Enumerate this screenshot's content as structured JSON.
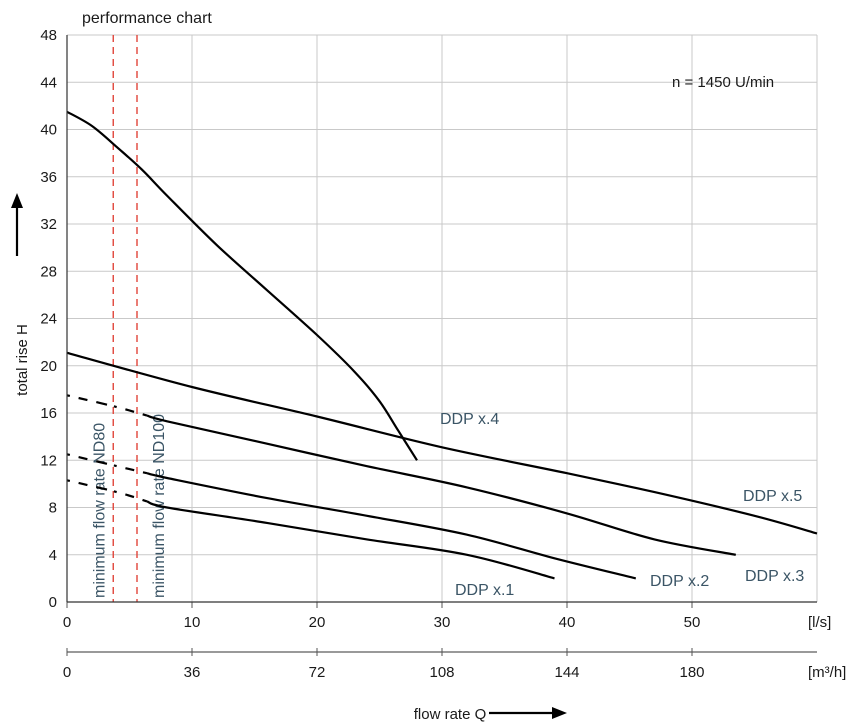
{
  "chart_data": {
    "type": "line",
    "title": "performance chart",
    "ylabel": "total rise H",
    "xlabel": "flow rate  Q",
    "speed_note": "n = 1450   U/min",
    "ylim": [
      0,
      48
    ],
    "xlim": [
      0,
      60
    ],
    "y_ticks": [
      0,
      4,
      8,
      12,
      16,
      20,
      24,
      28,
      32,
      36,
      40,
      44,
      48
    ],
    "x_ticks": [
      0,
      10,
      20,
      30,
      40,
      50
    ],
    "x_unit": "[l/s]",
    "x2_ticks": [
      0,
      36,
      72,
      108,
      144,
      180
    ],
    "x2_unit": "[m³/h]",
    "grid": true,
    "reference_lines": [
      {
        "label": "minimum flow rate ND80",
        "x": 3.7,
        "color": "#e0453a"
      },
      {
        "label": "minimum flow rate ND100",
        "x": 5.6,
        "color": "#e0453a"
      }
    ],
    "series": [
      {
        "name": "DDP x.1",
        "dashed_to_x": 6.4,
        "points": [
          [
            0,
            10.3
          ],
          [
            4,
            9.3
          ],
          [
            8,
            8.0
          ],
          [
            16,
            6.7
          ],
          [
            24,
            5.3
          ],
          [
            32,
            4.0
          ],
          [
            39,
            2.0
          ]
        ]
      },
      {
        "name": "DDP x.2",
        "dashed_to_x": 6.4,
        "points": [
          [
            0,
            12.5
          ],
          [
            4,
            11.5
          ],
          [
            8,
            10.5
          ],
          [
            16,
            8.8
          ],
          [
            24,
            7.3
          ],
          [
            32,
            5.7
          ],
          [
            39,
            3.7
          ],
          [
            45.5,
            2.0
          ]
        ]
      },
      {
        "name": "DDP x.3",
        "dashed_to_x": 6.4,
        "points": [
          [
            0,
            17.5
          ],
          [
            4,
            16.5
          ],
          [
            8,
            15.3
          ],
          [
            16,
            13.4
          ],
          [
            24,
            11.5
          ],
          [
            32,
            9.7
          ],
          [
            40,
            7.5
          ],
          [
            47,
            5.3
          ],
          [
            53.5,
            4.0
          ]
        ]
      },
      {
        "name": "DDP x.4",
        "dashed_to_x": 0,
        "points": [
          [
            0,
            41.5
          ],
          [
            2,
            40.3
          ],
          [
            4,
            38.5
          ],
          [
            6,
            36.6
          ],
          [
            8,
            34.4
          ],
          [
            12,
            30.2
          ],
          [
            16,
            26.4
          ],
          [
            20,
            22.6
          ],
          [
            23,
            19.5
          ],
          [
            25,
            17.0
          ],
          [
            26.5,
            14.5
          ],
          [
            28,
            12.0
          ]
        ]
      },
      {
        "name": "DDP x.5",
        "dashed_to_x": 0,
        "points": [
          [
            0,
            21.1
          ],
          [
            10,
            18.2
          ],
          [
            20,
            15.7
          ],
          [
            30,
            13.1
          ],
          [
            40,
            10.9
          ],
          [
            47,
            9.3
          ],
          [
            55,
            7.3
          ],
          [
            60,
            5.8
          ]
        ]
      }
    ]
  }
}
